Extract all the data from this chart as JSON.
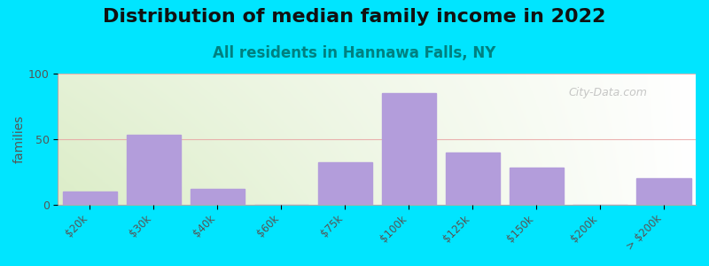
{
  "title": "Distribution of median family income in 2022",
  "subtitle": "All residents in Hannawa Falls, NY",
  "xlabel": "",
  "ylabel": "families",
  "categories": [
    "$20k",
    "$30k",
    "$40k",
    "$60k",
    "$75k",
    "$100k",
    "$125k",
    "$150k",
    "$200k",
    "> $200k"
  ],
  "values": [
    10,
    53,
    12,
    0,
    32,
    85,
    40,
    28,
    0,
    20
  ],
  "bar_color": "#b39ddb",
  "bar_edgecolor": "#b39ddb",
  "ylim": [
    0,
    100
  ],
  "yticks": [
    0,
    50,
    100
  ],
  "outer_bg": "#00e5ff",
  "title_fontsize": 16,
  "subtitle_fontsize": 12,
  "subtitle_color": "#008080",
  "ylabel_fontsize": 10,
  "watermark": "City-Data.com",
  "grid_color": "#e8a0a0",
  "grid_alpha": 0.8,
  "n_categories": 10
}
